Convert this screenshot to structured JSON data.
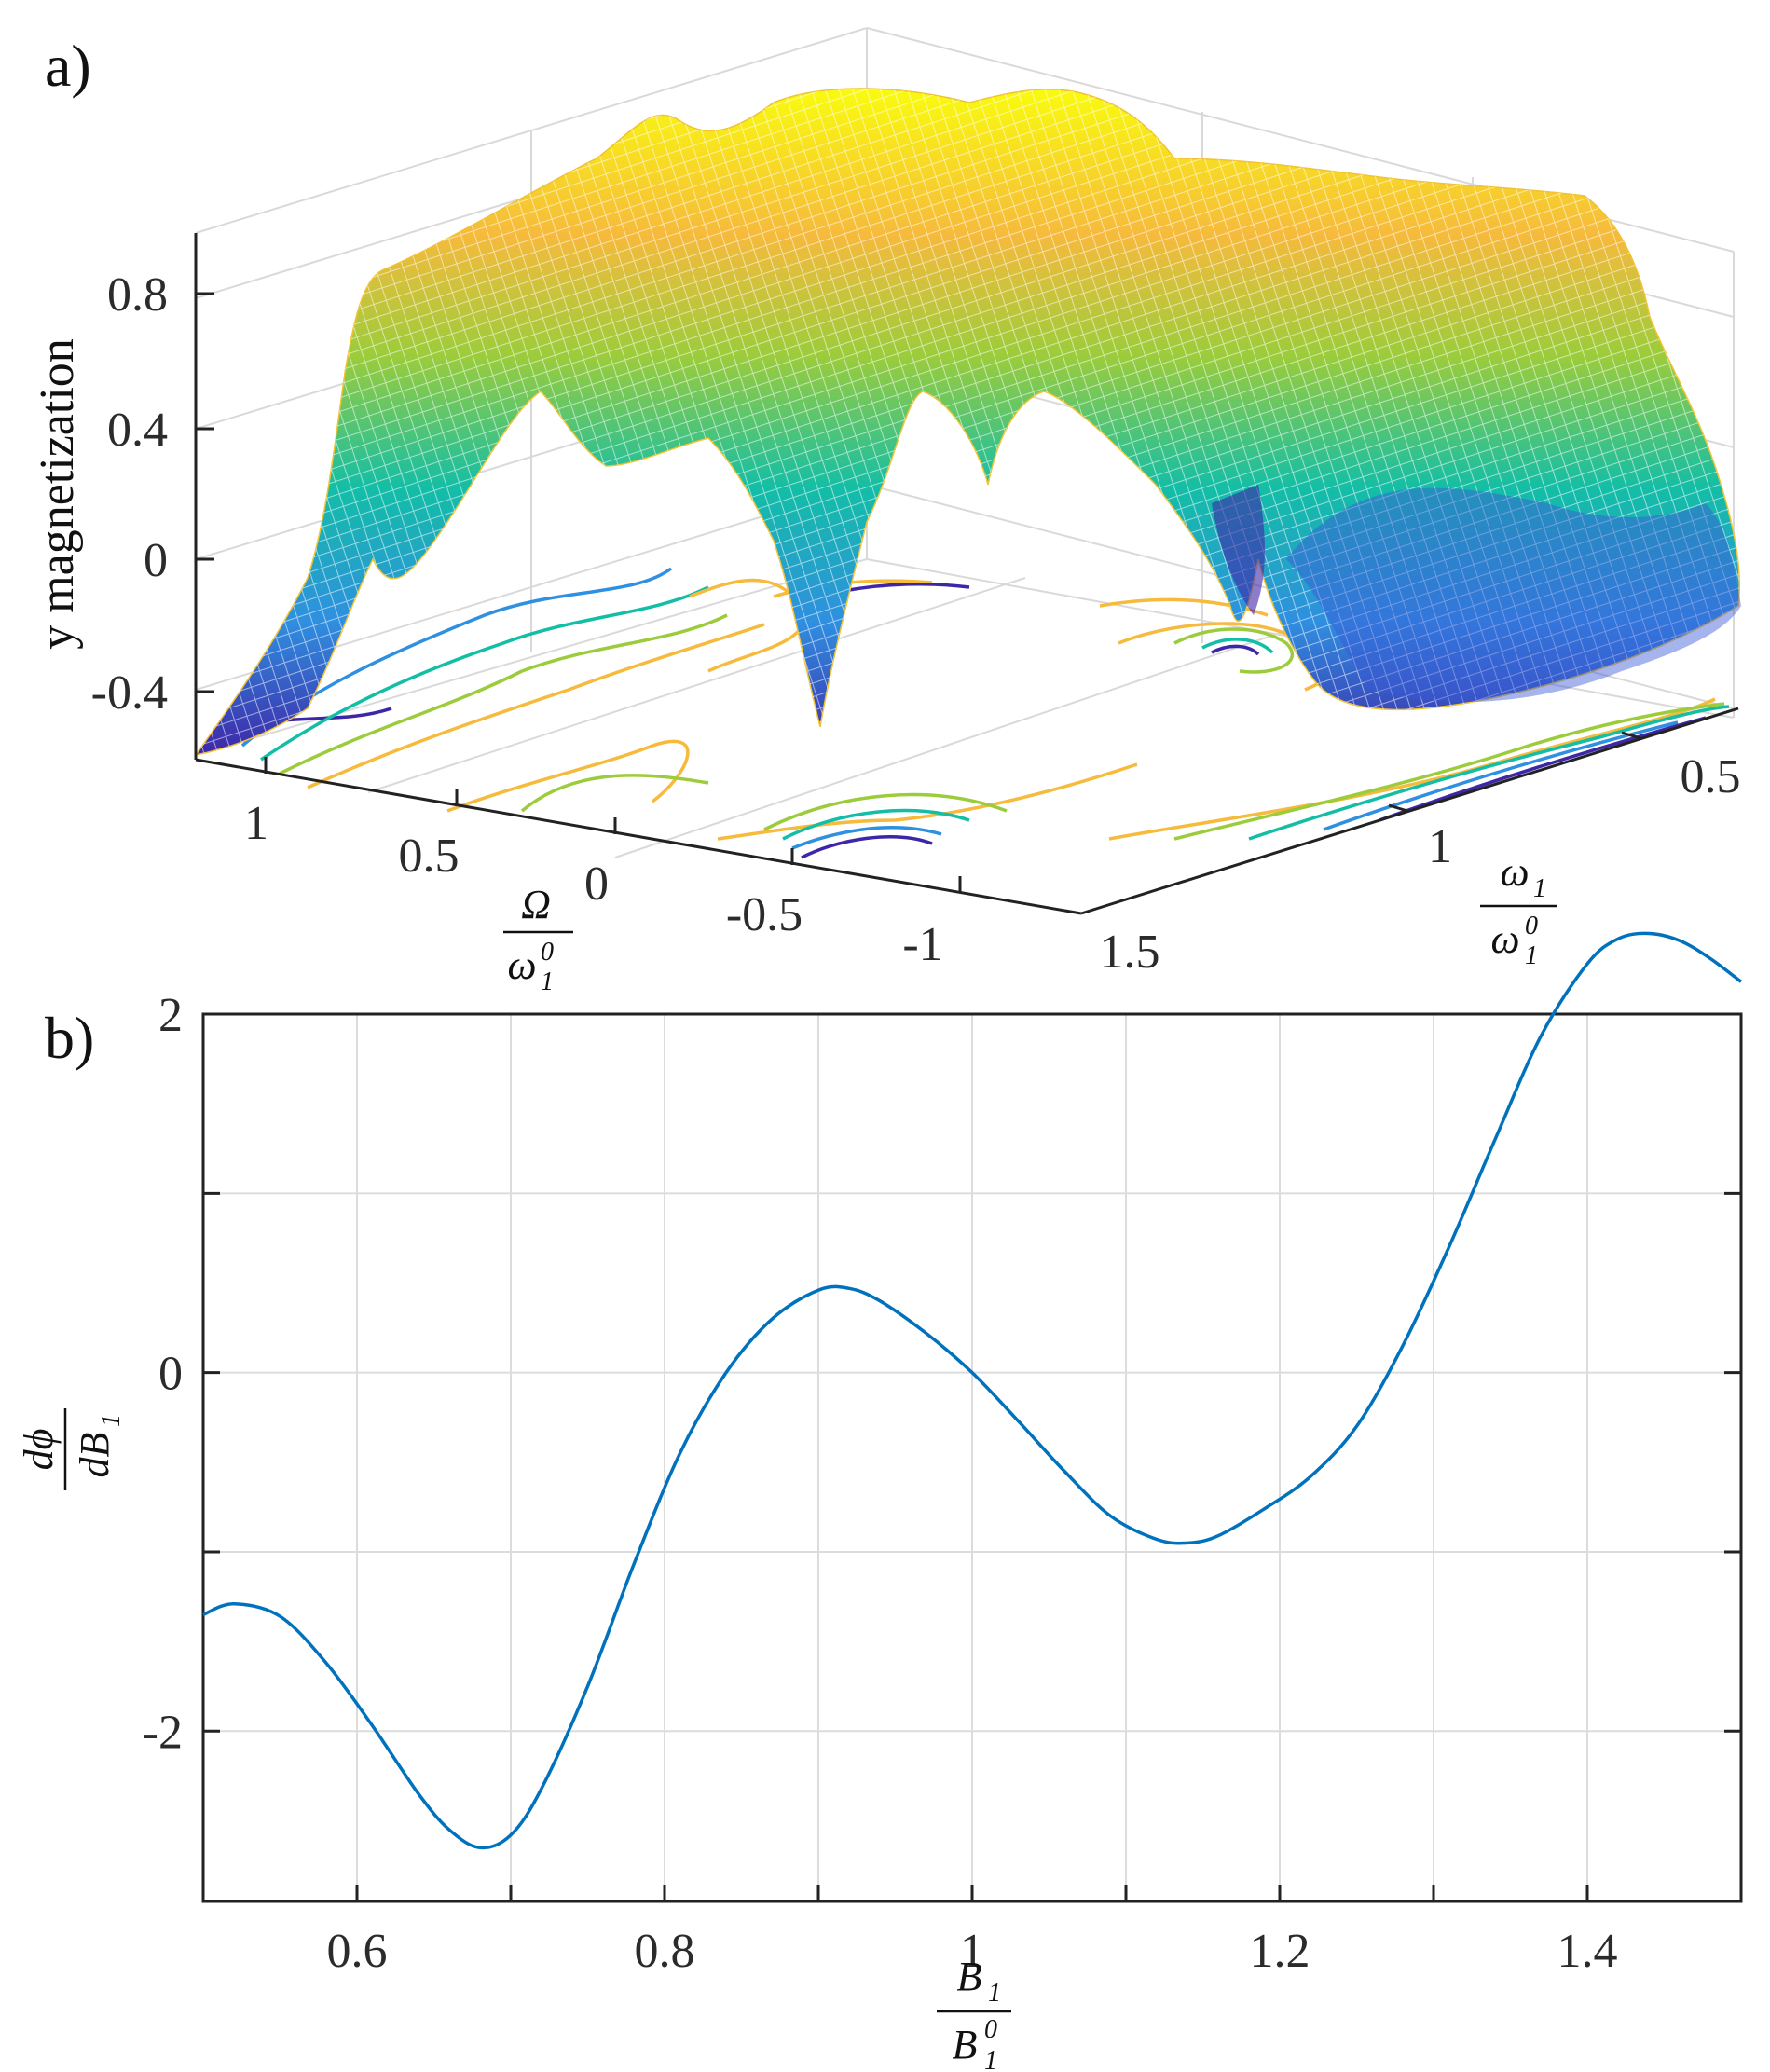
{
  "panels": {
    "a_label": "a)",
    "b_label": "b)"
  },
  "chart_data": [
    {
      "type": "surface",
      "panel": "a)",
      "zlabel": "y magnetization",
      "xlabel": {
        "numerator": "Ω",
        "denominator": "ω",
        "den_sub": "1",
        "den_sup": "0"
      },
      "ylabel": {
        "numerator": "ω",
        "num_sub": "1",
        "denominator": "ω",
        "den_sub": "1",
        "den_sup": "0"
      },
      "z_ticks": [
        "0.8",
        "0.4",
        "0",
        "-0.4"
      ],
      "x_ticks": [
        "1",
        "0.5",
        "0",
        "-0.5",
        "-1"
      ],
      "y_ticks": [
        "1.5",
        "1",
        "0.5"
      ],
      "zlim": [
        -0.6,
        1.0
      ],
      "xlim": [
        -1.2,
        1.2
      ],
      "ylim": [
        0.4,
        1.5
      ],
      "colormap": [
        "#3e26a8",
        "#2f8fe0",
        "#13bea6",
        "#9ccc3b",
        "#f6ba3c",
        "#f9fb0e"
      ],
      "contours_on_floor": true,
      "grid": true
    },
    {
      "type": "line",
      "panel": "b)",
      "xlabel": {
        "numerator": "B",
        "num_sub": "1",
        "denominator": "B",
        "den_sub": "1",
        "den_sup": "0"
      },
      "ylabel": {
        "numerator": "dϕ",
        "denominator": "dB",
        "den_sub": "1"
      },
      "xlim": [
        0.5,
        1.5
      ],
      "ylim": [
        -2.95,
        2.0
      ],
      "x_ticks": [
        0.6,
        0.8,
        1.0,
        1.2,
        1.4
      ],
      "x_tick_labels": [
        "0.6",
        "0.8",
        "1",
        "1.2",
        "1.4"
      ],
      "y_ticks": [
        2,
        0,
        -2
      ],
      "y_tick_labels": [
        "2",
        "0",
        "-2"
      ],
      "grid": true,
      "line_color": "#0072bd",
      "series": [
        {
          "x": [
            0.5,
            0.52,
            0.55,
            0.58,
            0.61,
            0.64,
            0.66,
            0.68,
            0.7,
            0.72,
            0.75,
            0.78,
            0.81,
            0.84,
            0.87,
            0.9,
            0.92,
            0.94,
            0.97,
            1.0,
            1.03,
            1.06,
            1.09,
            1.12,
            1.14,
            1.16,
            1.19,
            1.22,
            1.25,
            1.28,
            1.31,
            1.34,
            1.37,
            1.4,
            1.42,
            1.44,
            1.46,
            1.48,
            1.5
          ],
          "y": [
            -1.35,
            -1.29,
            -1.36,
            -1.62,
            -1.97,
            -2.35,
            -2.55,
            -2.65,
            -2.58,
            -2.32,
            -1.75,
            -1.07,
            -0.45,
            0.0,
            0.3,
            0.46,
            0.47,
            0.4,
            0.22,
            0.0,
            -0.27,
            -0.55,
            -0.8,
            -0.93,
            -0.95,
            -0.91,
            -0.76,
            -0.58,
            -0.3,
            0.15,
            0.7,
            1.3,
            1.88,
            2.28,
            2.42,
            2.45,
            2.41,
            2.31,
            2.18
          ]
        }
      ]
    }
  ]
}
